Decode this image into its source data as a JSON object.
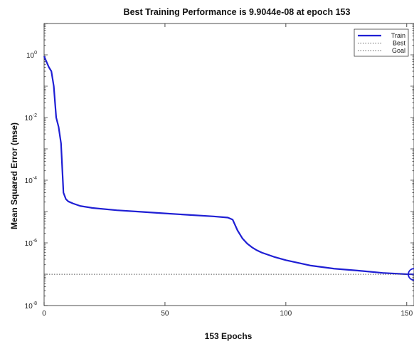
{
  "chart_data": {
    "type": "line",
    "title": "Best Training Performance is 9.9044e-08 at epoch 153",
    "xlabel": "153 Epochs",
    "ylabel": "Mean Squared Error  (mse)",
    "yscale": "log",
    "xlim": [
      0,
      153
    ],
    "ylim": [
      1e-08,
      10.0
    ],
    "x_ticks": [
      0,
      50,
      100,
      150
    ],
    "x_tick_labels": [
      "0",
      "50",
      "100",
      "150"
    ],
    "y_ticks": [
      1e-08,
      1e-06,
      0.0001,
      0.01,
      1.0
    ],
    "y_tick_labels": [
      {
        "base": "10",
        "exp": "-8"
      },
      {
        "base": "10",
        "exp": "-6"
      },
      {
        "base": "10",
        "exp": "-4"
      },
      {
        "base": "10",
        "exp": "-2"
      },
      {
        "base": "10",
        "exp": "0"
      }
    ],
    "grid": false,
    "legend_position": "top-right",
    "series": [
      {
        "name": "Train",
        "color": "#1f1fd4",
        "style": "solid",
        "x": [
          0,
          1,
          2,
          3,
          4,
          5,
          6,
          7,
          8,
          9,
          10,
          12,
          15,
          20,
          30,
          40,
          50,
          60,
          70,
          76,
          78,
          80,
          82,
          84,
          86,
          88,
          90,
          95,
          100,
          110,
          120,
          130,
          140,
          150,
          153
        ],
        "y": [
          0.9,
          0.6,
          0.4,
          0.3,
          0.1,
          0.01,
          0.005,
          0.0015,
          4e-05,
          2.5e-05,
          2.1e-05,
          1.8e-05,
          1.5e-05,
          1.3e-05,
          1.1e-05,
          9.8e-06,
          8.7e-06,
          7.8e-06,
          7e-06,
          6.4e-06,
          5.5e-06,
          2.5e-06,
          1.4e-06,
          9.5e-07,
          7.2e-07,
          5.8e-07,
          4.9e-07,
          3.6e-07,
          2.8e-07,
          1.9e-07,
          1.5e-07,
          1.3e-07,
          1.1e-07,
          1e-07,
          9.9044e-08
        ]
      },
      {
        "name": "Best",
        "color": "#555555",
        "style": "dotted",
        "x": [
          0,
          153
        ],
        "y": [
          9.9044e-08,
          9.9044e-08
        ]
      },
      {
        "name": "Goal",
        "color": "#555555",
        "style": "dotted",
        "x": [],
        "y": []
      }
    ],
    "best_marker": {
      "x": 153,
      "y": 9.9044e-08,
      "color": "#1f1fd4"
    }
  }
}
